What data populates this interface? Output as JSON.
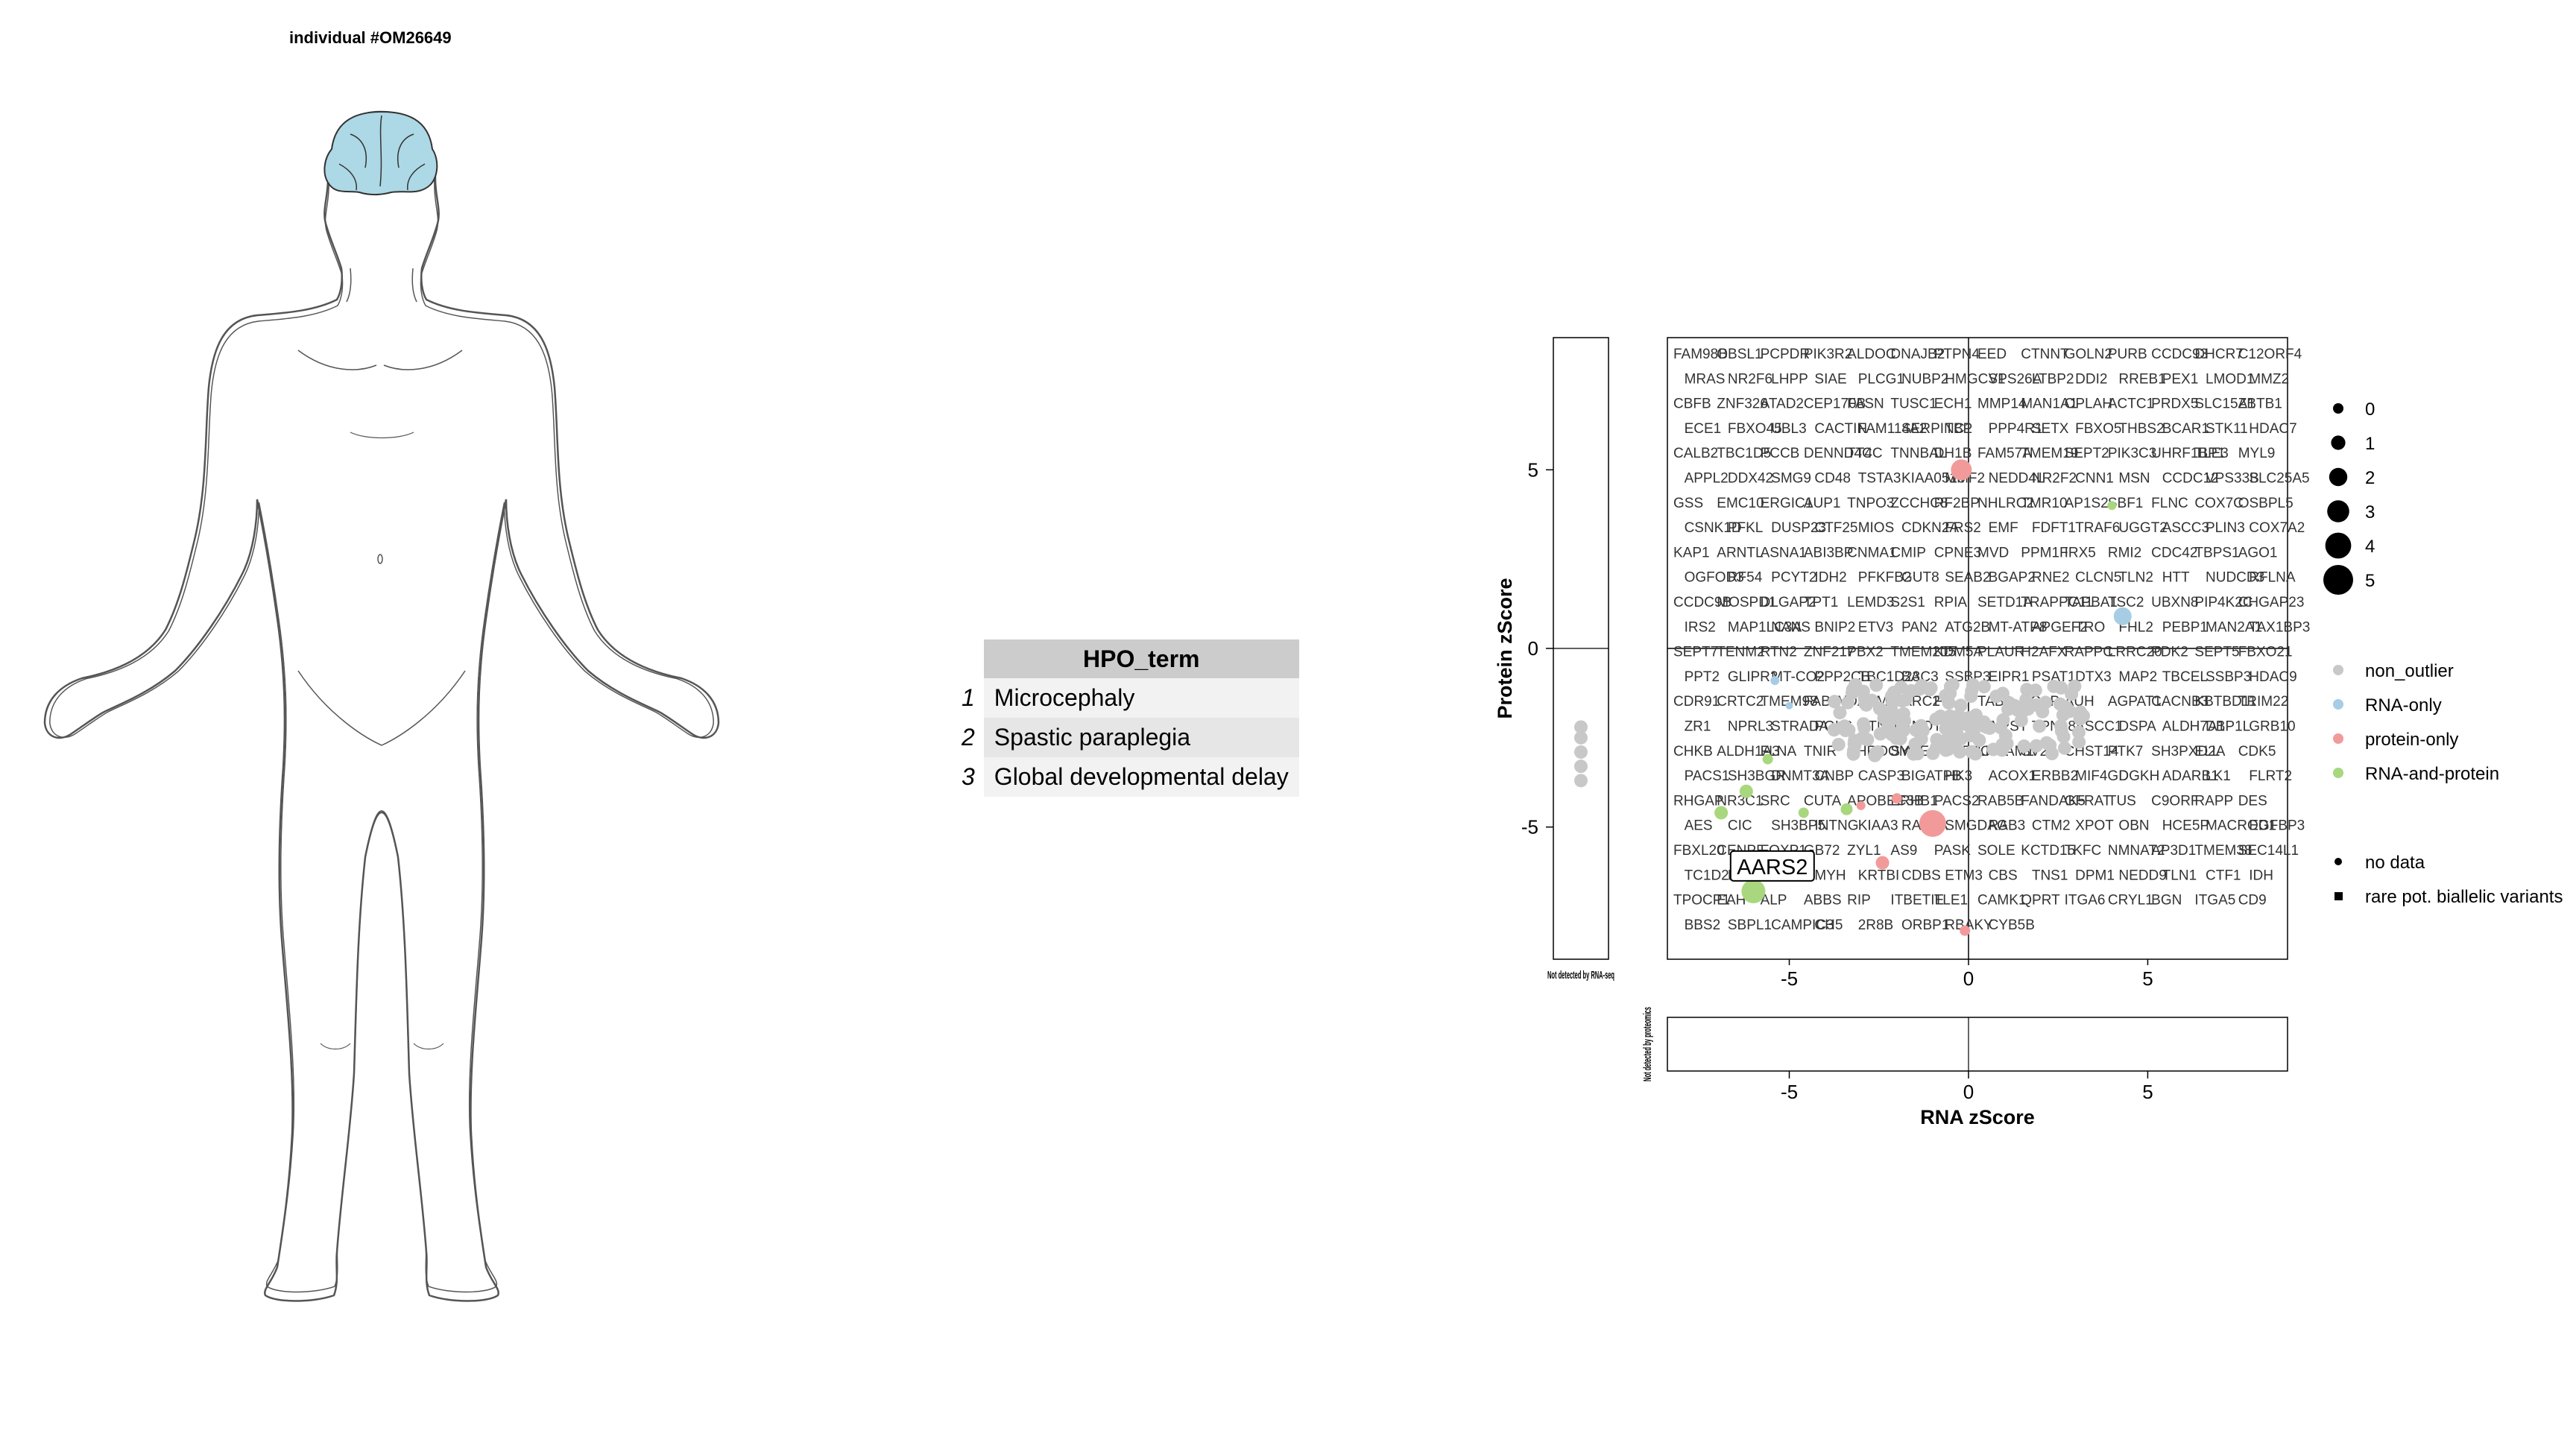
{
  "individual": {
    "title": "individual #OM26649"
  },
  "hpo_table": {
    "header": "HPO_term",
    "rows": [
      {
        "index": "1",
        "term": "Microcephaly"
      },
      {
        "index": "2",
        "term": "Spastic paraplegia"
      },
      {
        "index": "3",
        "term": "Global developmental delay"
      }
    ]
  },
  "colors": {
    "non_outlier": "#c8c8c8",
    "RNA-only": "#a7cde5",
    "protein-only": "#f29a9a",
    "RNA-and-protein": "#a8d77e",
    "brain": "#add8e6"
  },
  "chart_data": {
    "type": "scatter",
    "xlabel": "RNA zScore",
    "ylabel": "Protein zScore",
    "xlim": [
      -8.4,
      8.9
    ],
    "ylim": [
      -8.7,
      8.7
    ],
    "x_ticks": [
      -5,
      0,
      5
    ],
    "y_ticks": [
      -5,
      0,
      5
    ],
    "tick_labels": {
      "x": [
        "-5",
        "0",
        "5"
      ],
      "y": [
        "-5",
        "0",
        "5"
      ]
    },
    "side_panel_label": "Not detected by RNA-seq",
    "bottom_panel_label": "Not detected by proteomics",
    "highlighted_gene": "AARS2",
    "highlighted_point": {
      "x": -6.2,
      "y": -6.8
    },
    "size_legend": {
      "labels": [
        "0",
        "1",
        "2",
        "3",
        "4",
        "5"
      ]
    },
    "color_legend": {
      "labels": [
        "non_outlier",
        "RNA-only",
        "protein-only",
        "RNA-and-protein"
      ]
    },
    "shape_legend": {
      "labels": [
        "no data",
        "rare pot. biallelic variants"
      ]
    },
    "gene_labels": [
      "FAM98B",
      "OBSL1",
      "PCPDR",
      "PIK3R2",
      "ALDOC",
      "DNAJB2",
      "PTPN4",
      "EED",
      "CTNNT",
      "GOLN2",
      "PURB",
      "CCDC93",
      "DHCR7",
      "C12ORF4",
      "MRAS",
      "NR2F6",
      "LHPP",
      "SIAE",
      "PLCG1",
      "NUBP2",
      "HMGCS1",
      "VPS26A",
      "LTBP2",
      "DDI2",
      "RREB1",
      "PEX1",
      "LMOD1",
      "MMZ2",
      "CBFB",
      "ZNF326",
      "ATAD2",
      "CEP170B",
      "FASN",
      "TUSC1",
      "ECH1",
      "MMP14",
      "MAN1A1",
      "OPLAH",
      "ACTC1",
      "PRDX5",
      "SLC15A1",
      "ZBTB1",
      "ECE1",
      "FBXO45",
      "UBL3",
      "CACTIN",
      "FAM114A2",
      "SERPINC1",
      "TBP",
      "PPP4R1",
      "SETX",
      "FBXO5",
      "THBS2",
      "BCAR1",
      "STK11",
      "HDAC7",
      "CALB2",
      "TBC1D5",
      "PCCB",
      "DENND4C",
      "TT4C",
      "TNNBAL",
      "DH1B",
      "FAM57A",
      "TMEM19",
      "SEPT2",
      "PIK3C3",
      "UHRF1BP1",
      "TLE3",
      "MYL9",
      "APPL2",
      "DDX42",
      "SMG9",
      "CD48",
      "TSTA3",
      "KIAA0513",
      "MMF2",
      "NEDD4L",
      "NR2F2",
      "CNN1",
      "MSN",
      "CCDC12",
      "VPS33B",
      "SLC25A5",
      "GSS",
      "EMC10",
      "ERGIC1",
      "AUP1",
      "TNPO3",
      "ZCCHC8",
      "RF2BP",
      "NHLRC2",
      "TMR10",
      "AP1S2",
      "SBF1",
      "FLNC",
      "COX7C",
      "OSBPL5",
      "CSNK1D",
      "PFKL",
      "DUSP23",
      "CTF25",
      "MIOS",
      "CDKN2A",
      "FRS2",
      "EMF",
      "FDFT1",
      "TRAF6",
      "UGGT2",
      "ASCC3",
      "PLIN3",
      "COX7A2",
      "KAP1",
      "ARNTL",
      "ASNA1",
      "ABI3BP",
      "CNMA1",
      "CMIP",
      "CPNE3",
      "MVD",
      "PPM1F",
      "IRX5",
      "RMI2",
      "CDC42",
      "TBPS1",
      "AGO1",
      "OGFOD3",
      "RF54",
      "PCYT2",
      "IDH2",
      "PFKFB2",
      "GUT8",
      "SEAB2",
      "BGAP2",
      "RNE2",
      "CLCN5",
      "TLN2",
      "HTT",
      "NUDCD3",
      "RFLNA",
      "CCDC9B",
      "MOSPD1",
      "DLGAP2",
      "TPT1",
      "LEMD3",
      "S2S1",
      "RPIA",
      "SETD1A",
      "TRAPPC11",
      "TAPBA1",
      "TSC2",
      "UBXN8",
      "PIP4K2C",
      "CHGAP23",
      "IRS2",
      "MAP1LC3A",
      "NANS",
      "BNIP2",
      "ETV3",
      "PAN2",
      "ATG2B",
      "MT-ATP8",
      "APGEF2",
      "TRO",
      "FHL2",
      "PEBP1",
      "MAN2A1",
      "TAX1BP3",
      "SEPT7",
      "TENM2",
      "RTN2",
      "ZNF217",
      "PBX2",
      "TMEM205",
      "KDM5A",
      "PLAUR",
      "H2AFX",
      "RAPPC",
      "LRRC20",
      "PDK2",
      "SEPT5",
      "FBXO21",
      "PPT2",
      "GLIPR2",
      "MT-CO2",
      "PPP2CB",
      "TBC1D23",
      "BAC3",
      "SSBP3",
      "EIPR1",
      "PSAT1",
      "DTX3",
      "MAP2",
      "TBCEL",
      "SSBP3",
      "HDAC9",
      "CDR91",
      "CRTC2",
      "TMEM98",
      "FABIAZ",
      "DAAM2",
      "MARC2",
      "F3",
      "TAB2",
      "SCAP",
      "AUH",
      "AGPAT1",
      "CACNB3",
      "KBTBD11",
      "TRIM22",
      "ZR1",
      "NPRL3",
      "STRADA",
      "PGLS",
      "CTNNBL",
      "CNOT10",
      "SLC15A4",
      "MPST",
      "TPN18",
      "ASCC1",
      "DSPA",
      "ALDH7A1",
      "DBP1L",
      "GRB10",
      "CHKB",
      "ALDH1A3",
      "FLNA",
      "TNIR",
      "SHROOM3",
      "SYDE1",
      "FGFR1OP2",
      "LRSAM1",
      "SV2A",
      "CHST14",
      "PTK7",
      "SH3PXD2A",
      "ELL",
      "CDK5",
      "PACS1",
      "SH3BGR",
      "DNMT3A",
      "CNBP",
      "CASP3",
      "BIGATPB",
      "HK3",
      "ACOX1",
      "ERBB2",
      "MIF4GD",
      "DGKH",
      "ADARB1",
      "LK1",
      "FLRT2",
      "RHGAP",
      "NR3C1",
      "SRC",
      "CUTA",
      "APOBEC3B",
      "ERHB1",
      "PACS2",
      "RAB5B",
      "FANDAK5",
      "GFRAT",
      "TUS",
      "C9ORF",
      "RAPP",
      "DES",
      "AES",
      "CIC",
      "SH3BP5",
      "INTNG",
      "KIAA3",
      "RAB7A",
      "SMGDAG",
      "RAB3",
      "CTM2",
      "XPOT",
      "OBN",
      "HCE5P",
      "MACROD1",
      "EGFBP3",
      "FBXL20",
      "CENPF",
      "FOXP1",
      "GB72",
      "ZYL1",
      "AS9",
      "PASK",
      "SOLE",
      "KCTD15",
      "TKFC",
      "NMNAT2",
      "AP3D1",
      "TMEM38",
      "SEC14L1",
      "TC1D2A",
      "DENND5A",
      "RPL31",
      "MYH",
      "KRTBI",
      "CDBS",
      "ETM3",
      "CBS",
      "TNS1",
      "DPM1",
      "NEDD9",
      "TLN1",
      "CTF1",
      "IDH",
      "TPOCP1",
      "EAH",
      "ALP",
      "ABBS",
      "RIP",
      "ITBETIE",
      "TLE1",
      "CAMK1",
      "QPRT",
      "ITGA6",
      "CRYL1",
      "BGN",
      "ITGA5",
      "CD9",
      "BBS2",
      "SBPL1",
      "CAMPIC3",
      "CH5",
      "2R8B",
      "ORBP1",
      "RBAKY",
      "CYB5B"
    ]
  }
}
